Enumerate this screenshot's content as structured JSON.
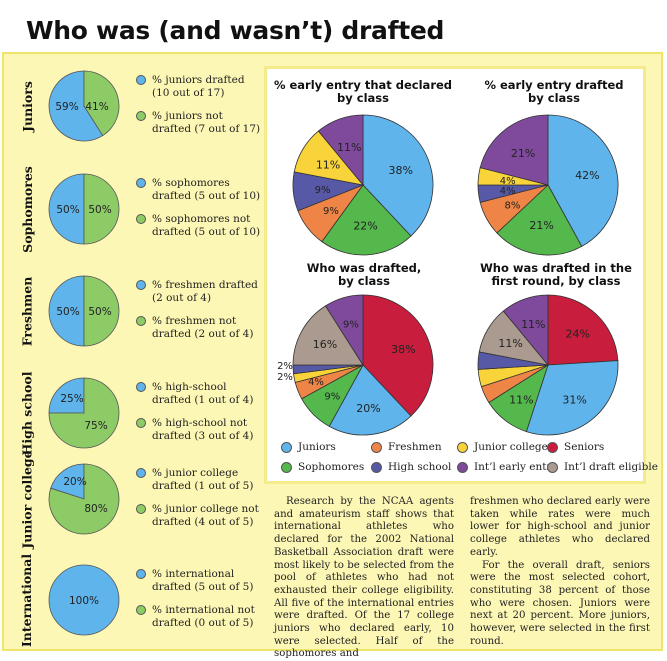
{
  "title": "Who was (and wasn’t) drafted",
  "colors": {
    "juniors": "#5fb4ec",
    "freshmen": "#ee8547",
    "junior_college": "#f8d43a",
    "seniors": "#c81d3c",
    "sophomores": "#54b84d",
    "high_school": "#5759a6",
    "intl_early": "#7f4a9c",
    "intl_eligible": "#ab9a8f",
    "row_drafted": "#5fb4ec",
    "row_not_drafted": "#8dcb67"
  },
  "chart_data": [
    {
      "type": "pie",
      "id": "row-juniors",
      "title": "Juniors",
      "labels": [
        "% juniors drafted (10 out of 17)",
        "% juniors not drafted (7 out of 17)"
      ],
      "values": [
        59,
        41
      ],
      "value_labels": [
        "59%",
        "41%"
      ]
    },
    {
      "type": "pie",
      "id": "row-sophomores",
      "title": "Sophomores",
      "labels": [
        "% sophomores drafted (5 out of 10)",
        "% sophomores not drafted (5 out of 10)"
      ],
      "values": [
        50,
        50
      ],
      "value_labels": [
        "50%",
        "50%"
      ]
    },
    {
      "type": "pie",
      "id": "row-freshmen",
      "title": "Freshmen",
      "labels": [
        "% freshmen drafted (2 out of 4)",
        "% freshmen not drafted (2 out of 4)"
      ],
      "values": [
        50,
        50
      ],
      "value_labels": [
        "50%",
        "50%"
      ]
    },
    {
      "type": "pie",
      "id": "row-highschool",
      "title": "High school",
      "labels": [
        "% high-school drafted (1 out of 4)",
        "% high-school not drafted (3 out of 4)"
      ],
      "values": [
        25,
        75
      ],
      "value_labels": [
        "25%",
        "75%"
      ]
    },
    {
      "type": "pie",
      "id": "row-juniorcollege",
      "title": "Junior college",
      "labels": [
        "% junior college drafted (1 out of 5)",
        "% junior college not drafted (4 out of 5)"
      ],
      "values": [
        20,
        80
      ],
      "value_labels": [
        "20%",
        "80%"
      ]
    },
    {
      "type": "pie",
      "id": "row-international",
      "title": "International",
      "labels": [
        "% international drafted (5 out of 5)",
        "% international not drafted (0 out of 5)"
      ],
      "values": [
        100,
        0
      ],
      "value_labels": [
        "100%",
        ""
      ]
    },
    {
      "type": "pie",
      "id": "declared",
      "title": "% early entry that declared by class",
      "categories": [
        "Juniors",
        "Sophomores",
        "Freshmen",
        "High school",
        "Junior college",
        "Int’l early entry"
      ],
      "values": [
        38,
        22,
        9,
        9,
        11,
        11
      ]
    },
    {
      "type": "pie",
      "id": "drafted",
      "title": "% early entry drafted by class",
      "categories": [
        "Juniors",
        "Sophomores",
        "Freshmen",
        "High school",
        "Junior college",
        "Int’l early entry"
      ],
      "values": [
        42,
        21,
        8,
        4,
        4,
        21
      ]
    },
    {
      "type": "pie",
      "id": "whodrafted",
      "title": "Who was drafted, by class",
      "categories": [
        "Seniors",
        "Juniors",
        "Sophomores",
        "Freshmen",
        "Junior college",
        "High school",
        "Int’l draft eligible",
        "Int’l early entry"
      ],
      "values": [
        38,
        20,
        9,
        4,
        2,
        2,
        16,
        9
      ]
    },
    {
      "type": "pie",
      "id": "firstround",
      "title": "Who was drafted in the first round, by class",
      "categories": [
        "Seniors",
        "Juniors",
        "Sophomores",
        "Freshmen",
        "Junior college",
        "High school",
        "Int’l draft eligible",
        "Int’l early entry"
      ],
      "values": [
        24,
        31,
        11,
        4,
        4,
        4,
        11,
        11
      ]
    }
  ],
  "left": {
    "rows": [
      {
        "label": "Juniors",
        "legend_drafted": "% juniors drafted (10 out of 17)",
        "legend_not": "% juniors not drafted (7 out of 17)"
      },
      {
        "label": "Sophomores",
        "legend_drafted": "% sophomores drafted (5 out of 10)",
        "legend_not": "% sophomores not drafted (5 out of 10)"
      },
      {
        "label": "Freshmen",
        "legend_drafted": "% freshmen drafted (2 out of 4)",
        "legend_not": "% freshmen not drafted (2 out of 4)"
      },
      {
        "label": "High school",
        "legend_drafted": "% high-school drafted (1 out of 4)",
        "legend_not": "% high-school not drafted (3 out of 4)"
      },
      {
        "label": "Junior college",
        "legend_drafted": "% junior college drafted (1 out of 5)",
        "legend_not": "% junior college not drafted (4 out of 5)"
      },
      {
        "label": "International",
        "legend_drafted": "% international drafted (5 out of 5)",
        "legend_not": "% international not drafted (0 out of 5)"
      }
    ]
  },
  "pies": {
    "declared_title": "% early entry that declared by class",
    "drafted_title": "% early entry drafted by class",
    "whodrafted_title": "Who was drafted, by class",
    "firstround_title": "Who was drafted in the first round, by class"
  },
  "legend": [
    "Juniors",
    "Freshmen",
    "Junior college",
    "Seniors",
    "Sophomores",
    "High school",
    "Int’l early entry",
    "Int’l draft eligible"
  ],
  "article": {
    "col1": "Research by the NCAA agents and amateurism staff shows that international athletes who declared for the 2002 National Basketball Association draft were most likely to be selected from the pool of athletes who had not exhausted their college eligibility. All five of the international entries were drafted. Of the 17 college juniors who declared early, 10 were selected. Half of the sophomores and",
    "col2_p1": "freshmen who declared early were taken while rates were much lower for high-school and junior college athletes who declared early.",
    "col2_p2": "For the overall draft, seniors were the most selected cohort, constituting 38 percent of those who were chosen. Juniors were next at 20 percent. More juniors, however, were selected in the first round."
  }
}
